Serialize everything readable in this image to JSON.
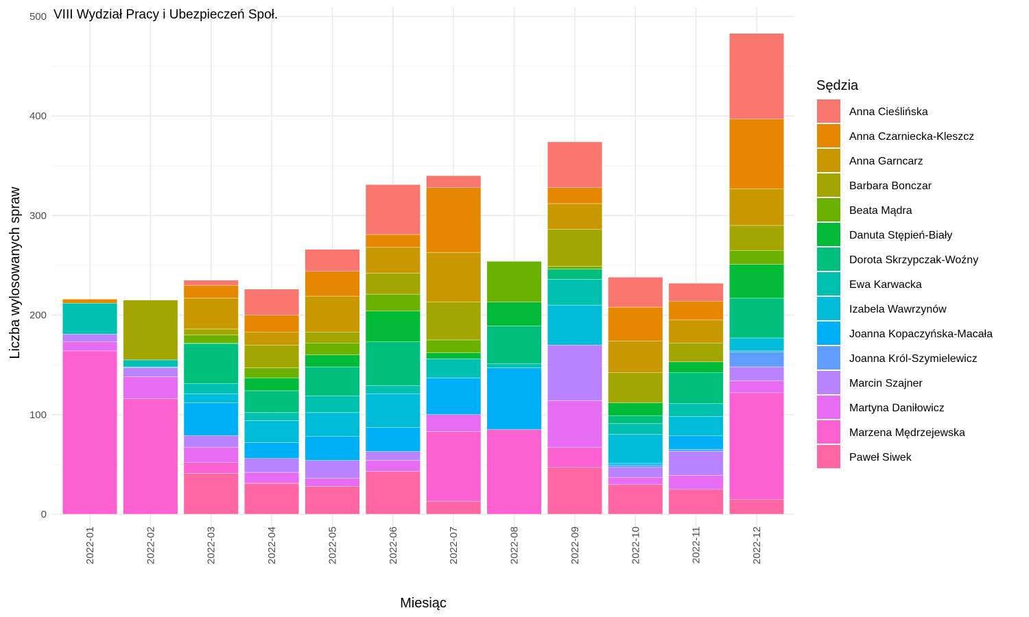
{
  "chart_data": {
    "type": "bar",
    "stacked": true,
    "title": "VIII Wydział Pracy i Ubezpieczeń Społ.",
    "xlabel": "Miesiąc",
    "ylabel": "Liczba wylosowanych spraw",
    "ylim": [
      0,
      500
    ],
    "yticks": [
      0,
      100,
      200,
      300,
      400,
      500
    ],
    "grid": true,
    "legend_title": "Sędzia",
    "legend_position": "right",
    "categories": [
      "2022-01",
      "2022-02",
      "2022-03",
      "2022-04",
      "2022-05",
      "2022-06",
      "2022-07",
      "2022-08",
      "2022-09",
      "2022-10",
      "2022-11",
      "2022-12"
    ],
    "series": [
      {
        "name": "Anna Cieślińska",
        "color": "#F8766D",
        "values": [
          0,
          0,
          5,
          26,
          22,
          50,
          12,
          0,
          46,
          30,
          18,
          86
        ]
      },
      {
        "name": "Anna Czarniecka-Kleszcz",
        "color": "#E58700",
        "values": [
          4,
          0,
          13,
          17,
          25,
          13,
          65,
          0,
          16,
          34,
          19,
          70
        ]
      },
      {
        "name": "Anna Garncarz",
        "color": "#C99800",
        "values": [
          0,
          0,
          31,
          13,
          36,
          26,
          50,
          0,
          26,
          32,
          23,
          37
        ]
      },
      {
        "name": "Barbara Bonczar",
        "color": "#A3A500",
        "values": [
          0,
          60,
          6,
          23,
          11,
          21,
          38,
          0,
          37,
          30,
          19,
          25
        ]
      },
      {
        "name": "Beata Mądra",
        "color": "#6BB100",
        "values": [
          0,
          0,
          8,
          10,
          12,
          17,
          13,
          41,
          3,
          0,
          0,
          14
        ]
      },
      {
        "name": "Danuta Stępień-Biały",
        "color": "#00BA38",
        "values": [
          0,
          0,
          1,
          13,
          12,
          31,
          6,
          24,
          0,
          13,
          11,
          34
        ]
      },
      {
        "name": "Dorota Skrzypczak-Woźny",
        "color": "#00BF7D",
        "values": [
          0,
          0,
          40,
          22,
          29,
          44,
          0,
          38,
          10,
          8,
          31,
          40
        ]
      },
      {
        "name": "Ewa Karwacka",
        "color": "#00C0AF",
        "values": [
          31,
          7,
          10,
          8,
          17,
          8,
          19,
          4,
          26,
          11,
          13,
          0
        ]
      },
      {
        "name": "Izabela Wawrzynów",
        "color": "#00BCD8",
        "values": [
          0,
          0,
          9,
          22,
          24,
          34,
          0,
          0,
          40,
          29,
          19,
          13
        ]
      },
      {
        "name": "Joanna Kopaczyńska-Macała",
        "color": "#00B0F6",
        "values": [
          0,
          0,
          33,
          16,
          24,
          24,
          37,
          62,
          0,
          2,
          14,
          1
        ]
      },
      {
        "name": "Joanna Król-Szymielewicz",
        "color": "#619CFF",
        "values": [
          0,
          1,
          0,
          0,
          0,
          0,
          0,
          0,
          0,
          2,
          2,
          15
        ]
      },
      {
        "name": "Marcin Szajner",
        "color": "#B983FF",
        "values": [
          8,
          9,
          12,
          14,
          18,
          9,
          0,
          0,
          56,
          10,
          24,
          14
        ]
      },
      {
        "name": "Martyna Daniłowicz",
        "color": "#E76BF3",
        "values": [
          9,
          22,
          15,
          11,
          8,
          11,
          17,
          0,
          47,
          7,
          14,
          12
        ]
      },
      {
        "name": "Marzena Mędrzejewska",
        "color": "#FD61D1",
        "values": [
          164,
          116,
          11,
          0,
          0,
          0,
          70,
          85,
          20,
          0,
          0,
          107
        ]
      },
      {
        "name": "Paweł Siwek",
        "color": "#FF67A4",
        "values": [
          0,
          0,
          41,
          31,
          28,
          43,
          13,
          0,
          47,
          30,
          25,
          15
        ]
      }
    ]
  }
}
